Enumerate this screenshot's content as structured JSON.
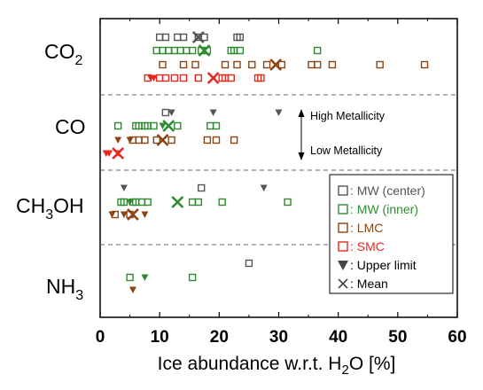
{
  "chart_data": {
    "type": "scatter",
    "xlabel_pre": "Ice abundance w.r.t. H",
    "xlabel_sub": "2",
    "xlabel_post": "O [%]",
    "xlim": [
      0,
      60
    ],
    "xticks": [
      0,
      10,
      20,
      30,
      40,
      50,
      60
    ],
    "grid": false,
    "legend_position": "lower-right",
    "categories": [
      {
        "id": "co2",
        "main": "CO",
        "sub": "2",
        "post": ""
      },
      {
        "id": "co",
        "main": "CO",
        "sub": "",
        "post": ""
      },
      {
        "id": "ch3oh",
        "main": "CH",
        "sub": "3",
        "post": "OH"
      },
      {
        "id": "nh3",
        "main": "NH",
        "sub": "3",
        "post": ""
      }
    ],
    "series": [
      {
        "name": "MW (center)",
        "color": "#555555",
        "label_color": "#555555",
        "detections": {
          "co2": [
            10,
            11,
            13,
            14,
            16.5,
            17.5,
            23,
            23.5
          ],
          "co": [
            11
          ],
          "ch3oh": [
            17
          ],
          "nh3": [
            25
          ]
        },
        "upper_limits": {
          "co": [
            12,
            19,
            30
          ],
          "ch3oh": [
            4,
            27.5
          ],
          "nh3": []
        },
        "mean": {
          "co2": 16.5
        }
      },
      {
        "name": "MW (inner)",
        "color": "#2e8b2e",
        "label_color": "#2e8b2e",
        "detections": {
          "co2": [
            9.5,
            10.5,
            11.5,
            12.5,
            13.5,
            14.5,
            15.5,
            17,
            18,
            22,
            22.5,
            23.5,
            36.5
          ],
          "co": [
            3,
            6,
            6.5,
            7.5,
            8,
            9,
            13,
            18.5,
            19.5
          ],
          "ch3oh": [
            3.5,
            4,
            5.5,
            6,
            7,
            8,
            15.5,
            16.5,
            20.5,
            31.5
          ],
          "nh3": [
            5,
            15.5
          ]
        },
        "upper_limits": {
          "co": [
            10.5
          ],
          "ch3oh": [
            5
          ],
          "nh3": [
            7.5
          ]
        },
        "mean": {
          "co2": 17.5,
          "co": 11.5,
          "ch3oh": 13
        }
      },
      {
        "name": "LMC",
        "color": "#8b4513",
        "label_color": "#8b4513",
        "detections": {
          "co2": [
            10.5,
            14,
            16,
            21,
            23,
            25.5,
            28,
            30.5,
            35.5,
            36.5,
            39,
            47,
            54.5
          ],
          "co": [
            5.5,
            6.5,
            7.5,
            9.5,
            12,
            18,
            19.5,
            22.5
          ],
          "ch3oh": [
            2.5,
            5
          ],
          "nh3": []
        },
        "upper_limits": {
          "co": [
            3,
            5
          ],
          "ch3oh": [
            2,
            4,
            7.5
          ],
          "nh3": [
            5.5
          ]
        },
        "mean": {
          "co2": 29.5,
          "co": 10.5,
          "ch3oh": 5.5
        }
      },
      {
        "name": "SMC",
        "color": "#e8281e",
        "label_color": "#e8281e",
        "detections": {
          "co2": [
            8,
            10,
            11,
            12.5,
            14,
            16.5,
            20.5,
            21,
            22,
            26.5,
            27
          ],
          "co": [],
          "ch3oh": [],
          "nh3": []
        },
        "upper_limits": {
          "co2": [
            8.5,
            9
          ],
          "co": [
            1,
            1.5,
            3
          ]
        },
        "mean": {
          "co2": 19,
          "co": 3
        }
      }
    ],
    "legend": {
      "entries": [
        {
          "symbol": "square",
          "text": ": MW (center)",
          "color": "#555555"
        },
        {
          "symbol": "square",
          "text": ": MW (inner)",
          "color": "#2e8b2e"
        },
        {
          "symbol": "square",
          "text": ": LMC",
          "color": "#8b4513"
        },
        {
          "symbol": "square",
          "text": ": SMC",
          "color": "#e8281e"
        },
        {
          "symbol": "triangle",
          "text": ": Upper limit",
          "color": "#444444"
        },
        {
          "symbol": "cross",
          "text": " : Mean",
          "color": "#444444"
        }
      ]
    },
    "annotations": {
      "high": "High Metallicity",
      "low": "Low Metallicity"
    }
  }
}
